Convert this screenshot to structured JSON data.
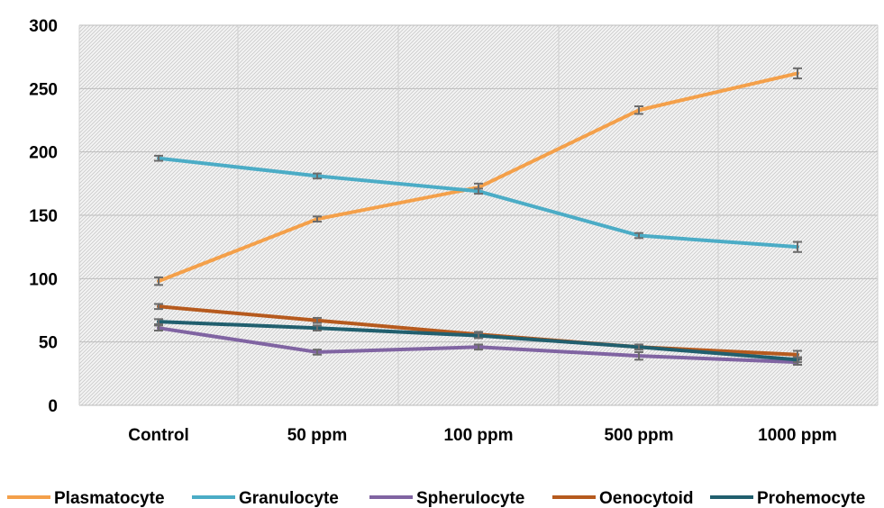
{
  "chart_data": {
    "type": "line",
    "categories": [
      "Control",
      "50 ppm",
      "100 ppm",
      "500 ppm",
      "1000 ppm"
    ],
    "ylim": [
      0,
      300
    ],
    "yticks": [
      0,
      50,
      100,
      150,
      200,
      250,
      300
    ],
    "grid": true,
    "legend_position": "bottom",
    "series": [
      {
        "name": "Plasmatocyte",
        "color": "#F4A04A",
        "values": [
          98,
          147,
          172,
          233,
          262
        ],
        "errors": [
          3,
          2,
          3,
          3,
          4
        ]
      },
      {
        "name": "Granulocyte",
        "color": "#4BACC6",
        "values": [
          195,
          181,
          169,
          134,
          125
        ],
        "errors": [
          2,
          2,
          2,
          2,
          4
        ]
      },
      {
        "name": "Spherulocyte",
        "color": "#8064A2",
        "values": [
          61,
          42,
          46,
          39,
          34
        ],
        "errors": [
          2,
          2,
          2,
          3,
          2
        ]
      },
      {
        "name": "Oenocytoid",
        "color": "#B65A1E",
        "values": [
          78,
          67,
          56,
          46,
          40
        ],
        "errors": [
          2,
          2,
          2,
          2,
          3
        ]
      },
      {
        "name": "Prohemocyte",
        "color": "#215F6E",
        "values": [
          66,
          61,
          55,
          46,
          36
        ],
        "errors": [
          2,
          2,
          2,
          2,
          2
        ]
      }
    ]
  }
}
